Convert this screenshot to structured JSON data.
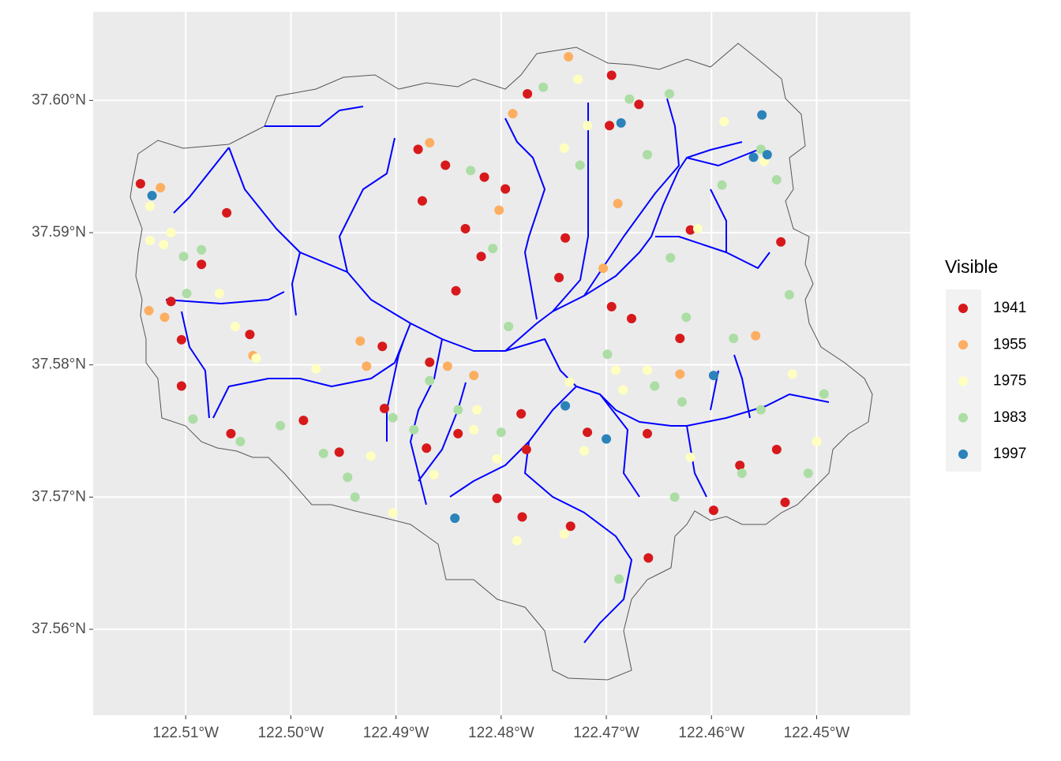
{
  "chart_data": {
    "type": "scatter",
    "legend_title": "Visible",
    "legend_position": "right",
    "grid": true,
    "xlim": [
      -122.5188,
      -122.4411
    ],
    "ylim": [
      37.5535,
      37.6067
    ],
    "xticks": [
      {
        "value": -122.51,
        "label": "122.51°W"
      },
      {
        "value": -122.5,
        "label": "122.50°W"
      },
      {
        "value": -122.49,
        "label": "122.49°W"
      },
      {
        "value": -122.48,
        "label": "122.48°W"
      },
      {
        "value": -122.47,
        "label": "122.47°W"
      },
      {
        "value": -122.46,
        "label": "122.46°W"
      },
      {
        "value": -122.45,
        "label": "122.45°W"
      }
    ],
    "yticks": [
      {
        "value": 37.56,
        "label": "37.56°N"
      },
      {
        "value": 37.57,
        "label": "37.57°N"
      },
      {
        "value": 37.58,
        "label": "37.58°N"
      },
      {
        "value": 37.59,
        "label": "37.59°N"
      },
      {
        "value": 37.6,
        "label": "37.60°N"
      }
    ],
    "series": [
      {
        "name": "1941",
        "color": "#d7191c",
        "x": [
          -122.5143,
          -122.5061,
          -122.5085,
          -122.5114,
          -122.5104,
          -122.5104,
          -122.5039,
          -122.5057,
          -122.4988,
          -122.4954,
          -122.4911,
          -122.4913,
          -122.4868,
          -122.4875,
          -122.4879,
          -122.4853,
          -122.4834,
          -122.4819,
          -122.4796,
          -122.4843,
          -122.4841,
          -122.4871,
          -122.4804,
          -122.4781,
          -122.4776,
          -122.478,
          -122.4734,
          -122.4718,
          -122.4695,
          -122.4697,
          -122.4669,
          -122.4695,
          -122.4676,
          -122.463,
          -122.462,
          -122.4661,
          -122.466,
          -122.4598,
          -122.4573,
          -122.4538,
          -122.453,
          -122.4534,
          -122.4739,
          -122.4745,
          -122.4775,
          -122.4816
        ],
        "y": [
          37.5937,
          37.5915,
          37.5876,
          37.5848,
          37.5819,
          37.5784,
          37.5823,
          37.5748,
          37.5758,
          37.5734,
          37.5767,
          37.5814,
          37.5802,
          37.5924,
          37.5963,
          37.5951,
          37.5903,
          37.5882,
          37.5933,
          37.5856,
          37.5748,
          37.5737,
          37.5699,
          37.5763,
          37.5736,
          37.5685,
          37.5678,
          37.5749,
          37.6019,
          37.5981,
          37.5997,
          37.5844,
          37.5835,
          37.582,
          37.5902,
          37.5748,
          37.5654,
          37.569,
          37.5724,
          37.5736,
          37.5696,
          37.5893,
          37.5896,
          37.5866,
          37.6005,
          37.5942
        ]
      },
      {
        "name": "1955",
        "color": "#fdae61",
        "x": [
          -122.5124,
          -122.5135,
          -122.512,
          -122.5036,
          -122.4934,
          -122.4928,
          -122.4851,
          -122.4826,
          -122.4802,
          -122.4789,
          -122.4736,
          -122.4703,
          -122.4689,
          -122.4558,
          -122.463,
          -122.4868
        ],
        "y": [
          37.5934,
          37.5841,
          37.5836,
          37.5807,
          37.5818,
          37.5799,
          37.5799,
          37.5792,
          37.5917,
          37.599,
          37.6033,
          37.5873,
          37.5922,
          37.5822,
          37.5793,
          37.5968
        ]
      },
      {
        "name": "1975",
        "color": "#ffffbf",
        "x": [
          -122.5134,
          -122.5134,
          -122.5121,
          -122.5114,
          -122.5068,
          -122.5053,
          -122.5033,
          -122.4976,
          -122.4903,
          -122.4864,
          -122.4823,
          -122.4804,
          -122.4785,
          -122.474,
          -122.4735,
          -122.4721,
          -122.4727,
          -122.474,
          -122.4718,
          -122.4684,
          -122.4691,
          -122.4661,
          -122.4613,
          -122.4588,
          -122.455,
          -122.462,
          -122.4523,
          -122.45,
          -122.4826,
          -122.4924
        ],
        "y": [
          37.592,
          37.5894,
          37.5891,
          37.59,
          37.5854,
          37.5829,
          37.5805,
          37.5797,
          37.5688,
          37.5717,
          37.5766,
          37.5729,
          37.5667,
          37.5672,
          37.5787,
          37.5735,
          37.6016,
          37.5964,
          37.5981,
          37.5781,
          37.5796,
          37.5796,
          37.5903,
          37.5984,
          37.5954,
          37.573,
          37.5793,
          37.5742,
          37.5751,
          37.5731
        ]
      },
      {
        "name": "1983",
        "color": "#abdda4",
        "x": [
          -122.5102,
          -122.5085,
          -122.5099,
          -122.5093,
          -122.501,
          -122.5048,
          -122.4969,
          -122.4946,
          -122.4939,
          -122.4903,
          -122.4883,
          -122.4868,
          -122.4841,
          -122.4829,
          -122.4808,
          -122.4793,
          -122.48,
          -122.476,
          -122.4725,
          -122.4678,
          -122.464,
          -122.4661,
          -122.4699,
          -122.4654,
          -122.4628,
          -122.4624,
          -122.4639,
          -122.4579,
          -122.4553,
          -122.4571,
          -122.4553,
          -122.4538,
          -122.4526,
          -122.4493,
          -122.4508,
          -122.4635,
          -122.4688,
          -122.459
        ],
        "y": [
          37.5882,
          37.5887,
          37.5854,
          37.5759,
          37.5754,
          37.5742,
          37.5733,
          37.5715,
          37.57,
          37.576,
          37.5751,
          37.5788,
          37.5766,
          37.5947,
          37.5888,
          37.5829,
          37.5749,
          37.601,
          37.5951,
          37.6001,
          37.6005,
          37.5959,
          37.5808,
          37.5784,
          37.5772,
          37.5836,
          37.5881,
          37.582,
          37.5766,
          37.5718,
          37.5963,
          37.594,
          37.5853,
          37.5778,
          37.5718,
          37.57,
          37.5638,
          37.5936
        ]
      },
      {
        "name": "1997",
        "color": "#2b83ba",
        "x": [
          -122.5132,
          -122.4844,
          -122.4739,
          -122.47,
          -122.4686,
          -122.4598,
          -122.4552,
          -122.4547,
          -122.456
        ],
        "y": [
          37.5928,
          37.5684,
          37.5769,
          37.5744,
          37.5983,
          37.5792,
          37.5989,
          37.5959,
          37.5957
        ]
      }
    ]
  }
}
